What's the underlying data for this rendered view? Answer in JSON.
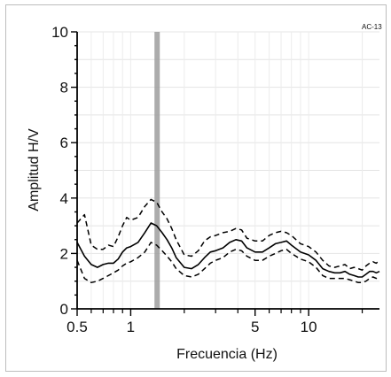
{
  "chart_data": {
    "type": "line",
    "corner_label": "AC-13",
    "xlabel": "Frecuencia (Hz)",
    "ylabel": "Amplitud H/V",
    "x_scale": "log",
    "xlim": [
      0.5,
      25
    ],
    "ylim": [
      0,
      10
    ],
    "grid": true,
    "x_ticks": [
      {
        "value": 0.5,
        "label": "0.5"
      },
      {
        "value": 1,
        "label": "1"
      },
      {
        "value": 5,
        "label": "5"
      },
      {
        "value": 10,
        "label": "10"
      }
    ],
    "x_minor_ticks": [
      0.6,
      0.7,
      0.8,
      0.9,
      2,
      3,
      4,
      6,
      7,
      8,
      9,
      20
    ],
    "y_ticks": [
      {
        "value": 0,
        "label": "0"
      },
      {
        "value": 2,
        "label": "2"
      },
      {
        "value": 4,
        "label": "4"
      },
      {
        "value": 6,
        "label": "6"
      },
      {
        "value": 8,
        "label": "8"
      },
      {
        "value": 10,
        "label": "10"
      }
    ],
    "peak_band": {
      "x_from": 1.36,
      "x_to": 1.44,
      "color": "#9e9e9e"
    },
    "series": [
      {
        "style": "solid",
        "x": [
          0.5,
          0.55,
          0.6,
          0.65,
          0.7,
          0.75,
          0.8,
          0.85,
          0.9,
          0.95,
          1.0,
          1.1,
          1.2,
          1.3,
          1.4,
          1.5,
          1.6,
          1.7,
          1.8,
          2.0,
          2.2,
          2.4,
          2.6,
          2.8,
          3.0,
          3.3,
          3.6,
          3.9,
          4.2,
          4.5,
          5.0,
          5.5,
          6.0,
          6.5,
          7.0,
          7.5,
          8.0,
          9.0,
          10.0,
          11,
          12,
          13,
          14,
          15,
          16,
          17,
          18,
          19,
          20,
          21,
          22,
          23,
          24,
          25
        ],
        "y": [
          2.4,
          1.9,
          1.6,
          1.5,
          1.6,
          1.65,
          1.65,
          1.8,
          2.05,
          2.2,
          2.25,
          2.4,
          2.75,
          3.1,
          3.0,
          2.75,
          2.5,
          2.2,
          1.85,
          1.5,
          1.45,
          1.6,
          1.85,
          2.05,
          2.1,
          2.2,
          2.4,
          2.5,
          2.45,
          2.2,
          2.05,
          2.05,
          2.2,
          2.35,
          2.4,
          2.45,
          2.3,
          2.05,
          1.95,
          1.75,
          1.45,
          1.35,
          1.3,
          1.3,
          1.35,
          1.25,
          1.2,
          1.15,
          1.15,
          1.25,
          1.35,
          1.35,
          1.3,
          1.35
        ]
      },
      {
        "style": "dashed",
        "x": [
          0.5,
          0.55,
          0.6,
          0.65,
          0.7,
          0.75,
          0.8,
          0.85,
          0.9,
          0.95,
          1.0,
          1.1,
          1.2,
          1.3,
          1.4,
          1.5,
          1.6,
          1.7,
          1.8,
          2.0,
          2.2,
          2.4,
          2.6,
          2.8,
          3.0,
          3.3,
          3.6,
          3.9,
          4.2,
          4.5,
          5.0,
          5.5,
          6.0,
          6.5,
          7.0,
          7.5,
          8.0,
          9.0,
          10.0,
          11,
          12,
          13,
          14,
          15,
          16,
          17,
          18,
          19,
          20,
          21,
          22,
          23,
          24,
          25
        ],
        "y": [
          3.1,
          3.4,
          2.3,
          2.15,
          2.15,
          2.3,
          2.25,
          2.6,
          3.0,
          3.3,
          3.2,
          3.3,
          3.7,
          3.95,
          3.85,
          3.5,
          3.25,
          2.9,
          2.5,
          1.95,
          1.9,
          2.1,
          2.45,
          2.6,
          2.65,
          2.75,
          2.8,
          2.9,
          2.85,
          2.55,
          2.45,
          2.45,
          2.65,
          2.75,
          2.8,
          2.75,
          2.65,
          2.35,
          2.25,
          2.05,
          1.75,
          1.55,
          1.5,
          1.55,
          1.6,
          1.45,
          1.5,
          1.45,
          1.4,
          1.55,
          1.65,
          1.7,
          1.65,
          1.75
        ]
      },
      {
        "style": "dashed",
        "x": [
          0.5,
          0.55,
          0.6,
          0.65,
          0.7,
          0.75,
          0.8,
          0.85,
          0.9,
          0.95,
          1.0,
          1.1,
          1.2,
          1.3,
          1.4,
          1.5,
          1.6,
          1.7,
          1.8,
          2.0,
          2.2,
          2.4,
          2.6,
          2.8,
          3.0,
          3.3,
          3.6,
          3.9,
          4.2,
          4.5,
          5.0,
          5.5,
          6.0,
          6.5,
          7.0,
          7.5,
          8.0,
          9.0,
          10.0,
          11,
          12,
          13,
          14,
          15,
          16,
          17,
          18,
          19,
          20,
          21,
          22,
          23,
          24,
          25
        ],
        "y": [
          1.75,
          1.1,
          0.95,
          1.0,
          1.1,
          1.2,
          1.3,
          1.4,
          1.55,
          1.65,
          1.7,
          1.85,
          2.05,
          2.4,
          2.3,
          2.1,
          1.9,
          1.7,
          1.45,
          1.2,
          1.15,
          1.25,
          1.45,
          1.65,
          1.75,
          1.85,
          2.05,
          2.15,
          2.1,
          1.9,
          1.75,
          1.75,
          1.9,
          2.0,
          2.1,
          2.15,
          2.0,
          1.8,
          1.7,
          1.5,
          1.2,
          1.1,
          1.1,
          1.1,
          1.1,
          1.05,
          1.0,
          0.95,
          0.95,
          1.0,
          1.1,
          1.15,
          1.1,
          1.15
        ]
      }
    ]
  }
}
